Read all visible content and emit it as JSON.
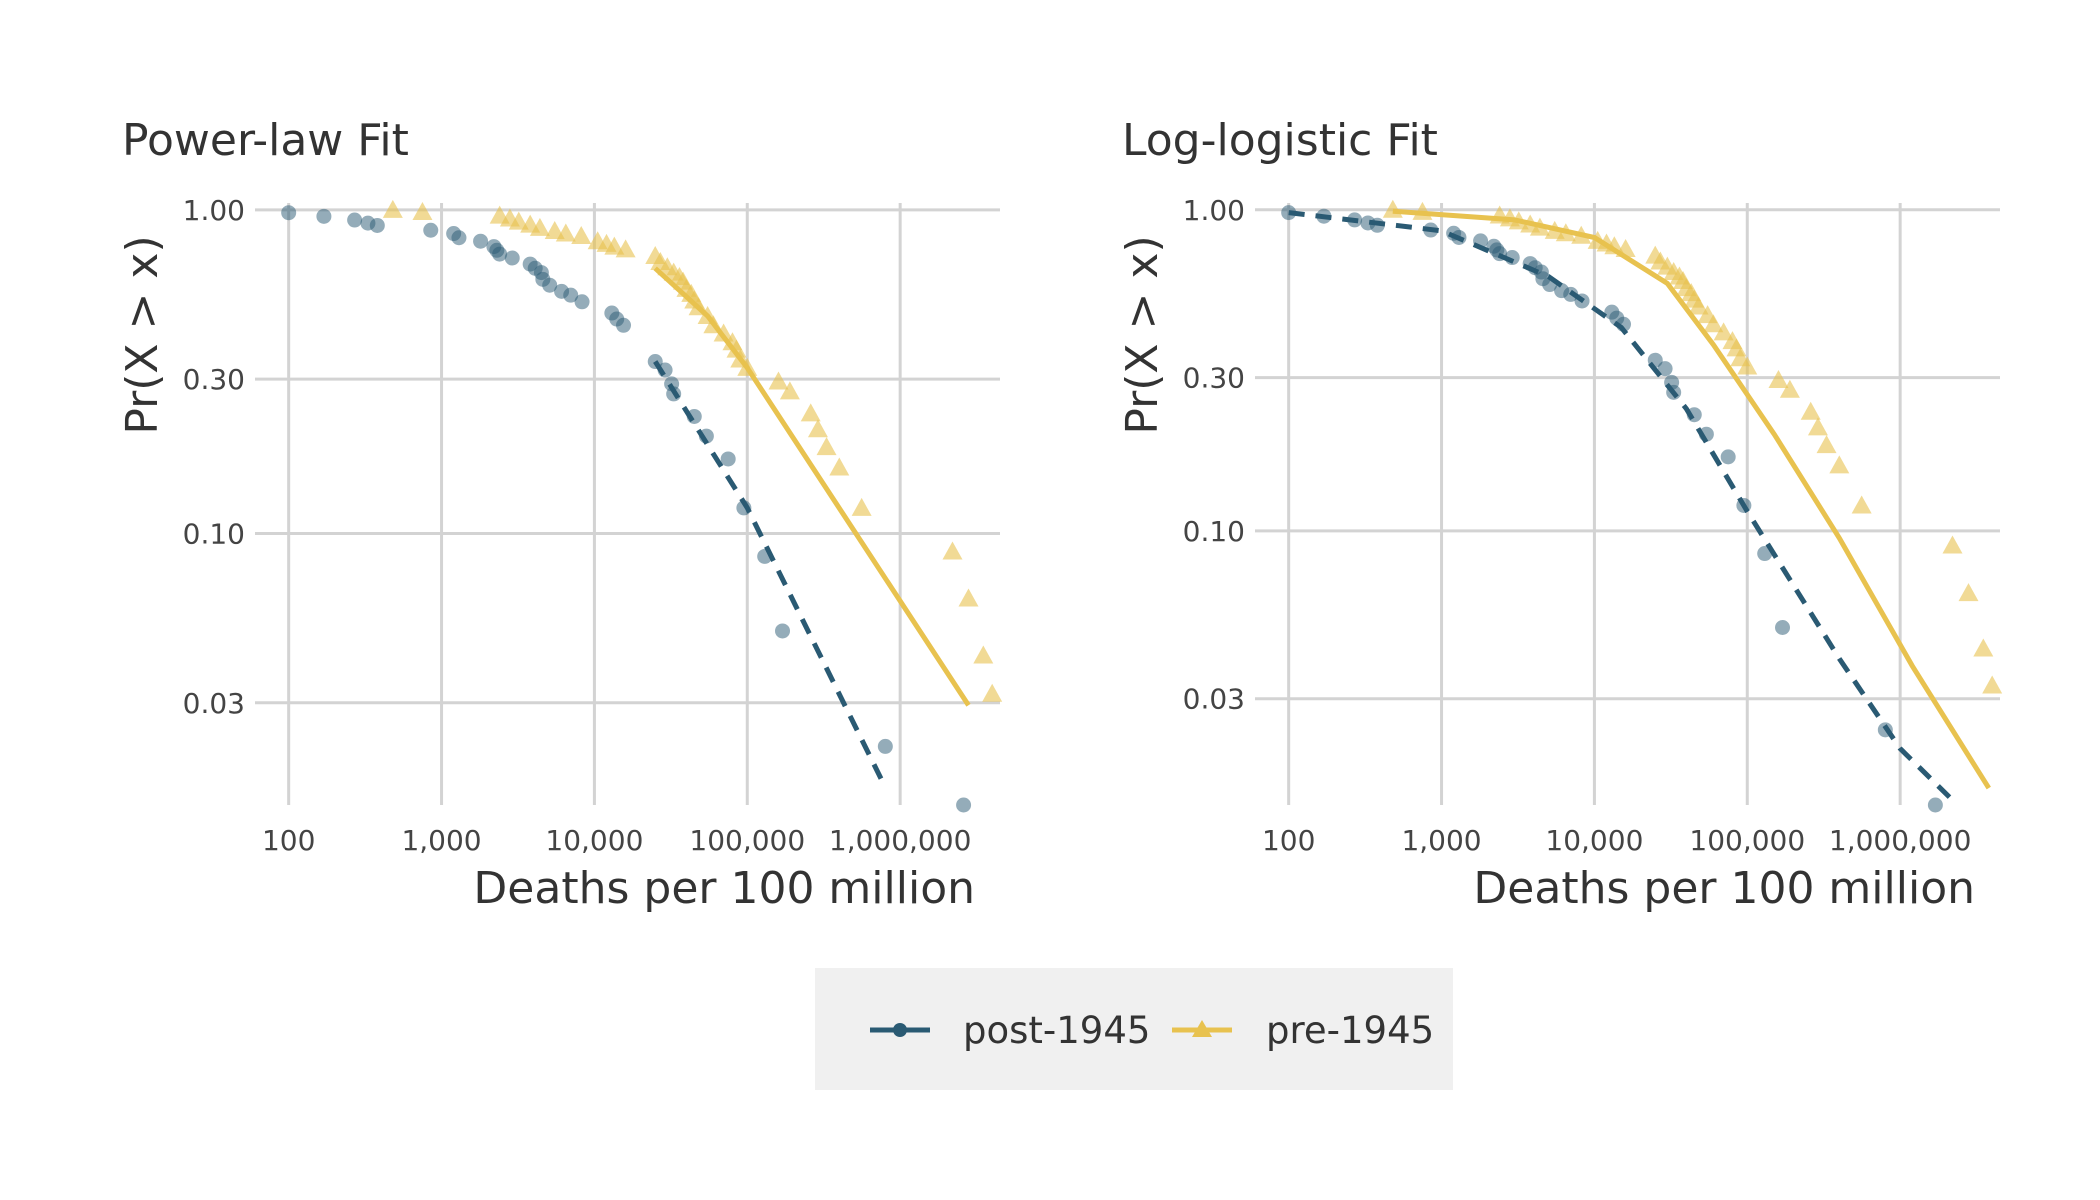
{
  "colors": {
    "post": "#2a5a73",
    "pre": "#e8c24f",
    "grid": "#d3d3d3",
    "legend_bg": "#f0f0f0"
  },
  "legend": {
    "position": "bottom-center",
    "items": [
      {
        "label": "post-1945",
        "marker": "circle",
        "line": "dashed"
      },
      {
        "label": "pre-1945",
        "marker": "triangle",
        "line": "solid"
      }
    ]
  },
  "chart_data": [
    {
      "type": "scatter",
      "title": "Power-law Fit",
      "xlabel": "Deaths per 100 million",
      "ylabel": "Pr(X > x)",
      "xscale": "log",
      "yscale": "log",
      "xlim": [
        70,
        4500000
      ],
      "ylim": [
        0.0145,
        1.05
      ],
      "grid": true,
      "x_ticks": [
        100,
        1000,
        10000,
        100000,
        1000000
      ],
      "x_tick_labels": [
        "100",
        "1,000",
        "10,000",
        "100,000",
        "1,000,000"
      ],
      "y_ticks": [
        1.0,
        0.3,
        0.1,
        0.03
      ],
      "y_tick_labels": [
        "1.00",
        "0.30",
        "0.10",
        "0.03"
      ],
      "series": [
        {
          "name": "post-1945",
          "marker": "circle",
          "points": [
            [
              100,
              0.98
            ],
            [
              170,
              0.955
            ],
            [
              270,
              0.93
            ],
            [
              330,
              0.91
            ],
            [
              380,
              0.895
            ],
            [
              850,
              0.865
            ],
            [
              1200,
              0.845
            ],
            [
              1300,
              0.82
            ],
            [
              1800,
              0.8
            ],
            [
              2200,
              0.77
            ],
            [
              2300,
              0.75
            ],
            [
              2400,
              0.73
            ],
            [
              2900,
              0.71
            ],
            [
              3800,
              0.68
            ],
            [
              4100,
              0.66
            ],
            [
              4500,
              0.64
            ],
            [
              4600,
              0.61
            ],
            [
              5100,
              0.585
            ],
            [
              6100,
              0.56
            ],
            [
              7000,
              0.545
            ],
            [
              8300,
              0.52
            ],
            [
              13000,
              0.48
            ],
            [
              14000,
              0.46
            ],
            [
              15500,
              0.44
            ],
            [
              25000,
              0.34
            ],
            [
              29000,
              0.32
            ],
            [
              32000,
              0.29
            ],
            [
              33000,
              0.27
            ],
            [
              45000,
              0.23
            ],
            [
              54000,
              0.2
            ],
            [
              75000,
              0.17
            ],
            [
              95000,
              0.12
            ],
            [
              130000,
              0.085
            ],
            [
              170000,
              0.05
            ],
            [
              800000,
              0.022
            ],
            [
              2600000,
              0.0145
            ]
          ],
          "fit": {
            "line": "dashed",
            "points": [
              [
                25000,
                0.34
              ],
              [
                100000,
                0.12
              ],
              [
                750000,
                0.0175
              ]
            ]
          }
        },
        {
          "name": "pre-1945",
          "marker": "triangle",
          "points": [
            [
              480,
              1.0
            ],
            [
              750,
              0.985
            ],
            [
              2400,
              0.96
            ],
            [
              2800,
              0.94
            ],
            [
              3200,
              0.92
            ],
            [
              3800,
              0.9
            ],
            [
              4400,
              0.88
            ],
            [
              5500,
              0.86
            ],
            [
              6500,
              0.845
            ],
            [
              8200,
              0.83
            ],
            [
              10500,
              0.8
            ],
            [
              12000,
              0.785
            ],
            [
              13500,
              0.77
            ],
            [
              16000,
              0.755
            ],
            [
              25000,
              0.72
            ],
            [
              27000,
              0.69
            ],
            [
              30000,
              0.665
            ],
            [
              33000,
              0.64
            ],
            [
              36000,
              0.62
            ],
            [
              38000,
              0.6
            ],
            [
              40000,
              0.57
            ],
            [
              43000,
              0.55
            ],
            [
              45000,
              0.525
            ],
            [
              48000,
              0.5
            ],
            [
              55000,
              0.47
            ],
            [
              60000,
              0.44
            ],
            [
              70000,
              0.415
            ],
            [
              80000,
              0.39
            ],
            [
              85000,
              0.37
            ],
            [
              90000,
              0.345
            ],
            [
              100000,
              0.325
            ],
            [
              160000,
              0.295
            ],
            [
              190000,
              0.275
            ],
            [
              260000,
              0.235
            ],
            [
              290000,
              0.21
            ],
            [
              330000,
              0.185
            ],
            [
              400000,
              0.16
            ],
            [
              560000,
              0.12
            ],
            [
              2200000,
              0.088
            ],
            [
              2800000,
              0.063
            ],
            [
              3500000,
              0.042
            ],
            [
              4000000,
              0.032
            ]
          ],
          "fit": {
            "line": "solid",
            "points": [
              [
                25000,
                0.66
              ],
              [
                55000,
                0.47
              ],
              [
                100000,
                0.325
              ],
              [
                2800000,
                0.0295
              ]
            ]
          }
        }
      ]
    },
    {
      "type": "scatter",
      "title": "Log-logistic Fit",
      "xlabel": "Deaths per 100 million",
      "ylabel": "Pr(X > x)",
      "xscale": "log",
      "yscale": "log",
      "xlim": [
        70,
        4500000
      ],
      "ylim": [
        0.014,
        1.05
      ],
      "grid": true,
      "x_ticks": [
        100,
        1000,
        10000,
        100000,
        1000000
      ],
      "x_tick_labels": [
        "100",
        "1,000",
        "10,000",
        "100,000",
        "1,000,000"
      ],
      "y_ticks": [
        1.0,
        0.3,
        0.1,
        0.03
      ],
      "y_tick_labels": [
        "1.00",
        "0.30",
        "0.10",
        "0.03"
      ],
      "series": [
        {
          "name": "post-1945",
          "marker": "circle",
          "points": [
            [
              100,
              0.98
            ],
            [
              170,
              0.955
            ],
            [
              270,
              0.93
            ],
            [
              330,
              0.91
            ],
            [
              380,
              0.895
            ],
            [
              850,
              0.865
            ],
            [
              1200,
              0.845
            ],
            [
              1300,
              0.82
            ],
            [
              1800,
              0.8
            ],
            [
              2200,
              0.77
            ],
            [
              2300,
              0.75
            ],
            [
              2400,
              0.73
            ],
            [
              2900,
              0.71
            ],
            [
              3800,
              0.68
            ],
            [
              4100,
              0.66
            ],
            [
              4500,
              0.64
            ],
            [
              4600,
              0.61
            ],
            [
              5100,
              0.585
            ],
            [
              6100,
              0.56
            ],
            [
              7000,
              0.545
            ],
            [
              8300,
              0.52
            ],
            [
              13000,
              0.48
            ],
            [
              14000,
              0.46
            ],
            [
              15500,
              0.44
            ],
            [
              25000,
              0.34
            ],
            [
              29000,
              0.32
            ],
            [
              32000,
              0.29
            ],
            [
              33000,
              0.27
            ],
            [
              45000,
              0.23
            ],
            [
              54000,
              0.2
            ],
            [
              75000,
              0.17
            ],
            [
              95000,
              0.12
            ],
            [
              130000,
              0.085
            ],
            [
              170000,
              0.05
            ],
            [
              800000,
              0.024
            ],
            [
              1700000,
              0.014
            ]
          ],
          "fit": {
            "line": "dashed",
            "points": [
              [
                100,
                0.98
              ],
              [
                1000,
                0.86
              ],
              [
                5000,
                0.62
              ],
              [
                15000,
                0.43
              ],
              [
                40000,
                0.24
              ],
              [
                100000,
                0.115
              ],
              [
                400000,
                0.04
              ],
              [
                1000000,
                0.021
              ],
              [
                2200000,
                0.0145
              ]
            ]
          }
        },
        {
          "name": "pre-1945",
          "marker": "triangle",
          "points": [
            [
              480,
              1.0
            ],
            [
              750,
              0.985
            ],
            [
              2400,
              0.96
            ],
            [
              2800,
              0.94
            ],
            [
              3200,
              0.92
            ],
            [
              3800,
              0.9
            ],
            [
              4400,
              0.88
            ],
            [
              5500,
              0.86
            ],
            [
              6500,
              0.845
            ],
            [
              8200,
              0.83
            ],
            [
              10500,
              0.8
            ],
            [
              12000,
              0.785
            ],
            [
              13500,
              0.77
            ],
            [
              16000,
              0.755
            ],
            [
              25000,
              0.72
            ],
            [
              27000,
              0.69
            ],
            [
              30000,
              0.665
            ],
            [
              33000,
              0.64
            ],
            [
              36000,
              0.62
            ],
            [
              38000,
              0.6
            ],
            [
              40000,
              0.57
            ],
            [
              43000,
              0.55
            ],
            [
              45000,
              0.525
            ],
            [
              48000,
              0.5
            ],
            [
              55000,
              0.47
            ],
            [
              60000,
              0.44
            ],
            [
              70000,
              0.415
            ],
            [
              80000,
              0.39
            ],
            [
              85000,
              0.37
            ],
            [
              90000,
              0.345
            ],
            [
              100000,
              0.325
            ],
            [
              160000,
              0.295
            ],
            [
              190000,
              0.275
            ],
            [
              260000,
              0.235
            ],
            [
              290000,
              0.21
            ],
            [
              330000,
              0.185
            ],
            [
              400000,
              0.16
            ],
            [
              560000,
              0.12
            ],
            [
              2200000,
              0.09
            ],
            [
              2800000,
              0.064
            ],
            [
              3500000,
              0.043
            ],
            [
              4000000,
              0.033
            ]
          ],
          "fit": {
            "line": "solid",
            "points": [
              [
                480,
                0.99
              ],
              [
                3000,
                0.93
              ],
              [
                10000,
                0.82
              ],
              [
                30000,
                0.59
              ],
              [
                60000,
                0.38
              ],
              [
                150000,
                0.2
              ],
              [
                400000,
                0.095
              ],
              [
                1200000,
                0.038
              ],
              [
                3800000,
                0.0158
              ]
            ]
          }
        }
      ]
    }
  ]
}
